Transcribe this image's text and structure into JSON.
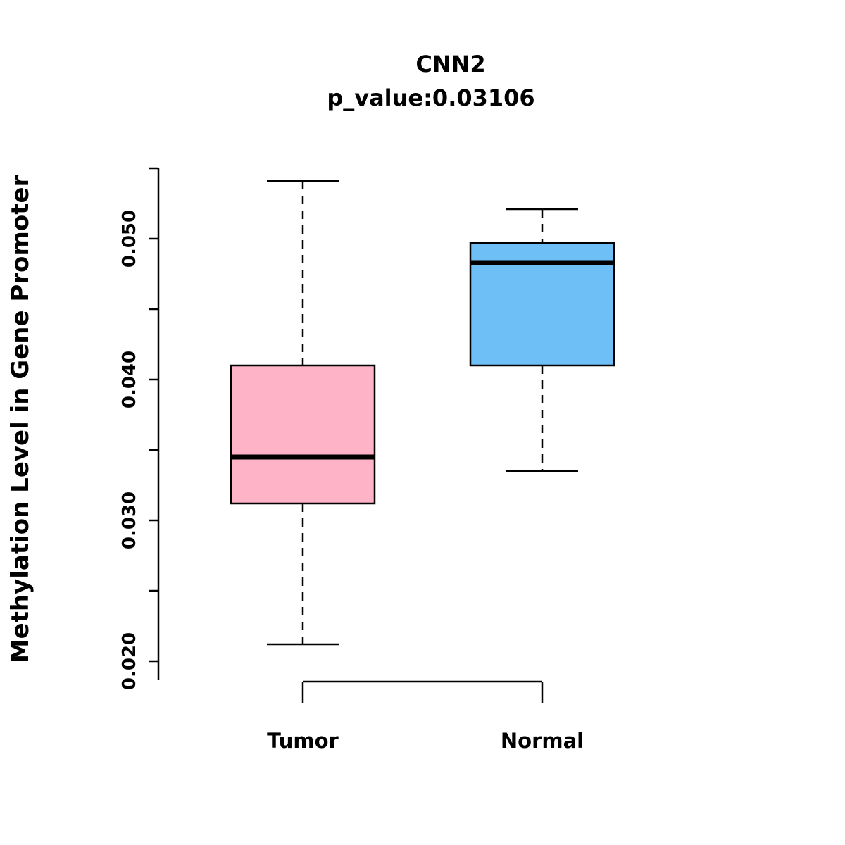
{
  "chart_data": {
    "type": "boxplot",
    "title": "CNN2",
    "subtitle": "p_value:0.03106",
    "ylabel": "Methylation Level in Gene Promoter",
    "xlabel": "",
    "categories": [
      "Tumor",
      "Normal"
    ],
    "ylim": [
      0.0187,
      0.055
    ],
    "grid": false,
    "legend": "none",
    "yticks": {
      "labeled": [
        0.02,
        0.03,
        0.04,
        0.05
      ],
      "labels": [
        "0.020",
        "0.030",
        "0.040",
        "0.050"
      ],
      "minor": [
        0.025,
        0.035,
        0.045,
        0.055
      ]
    },
    "boxes": [
      {
        "category": "Tumor",
        "color": "#FFB3C6",
        "whisker_low": 0.0212,
        "q1": 0.0312,
        "median": 0.0345,
        "q3": 0.041,
        "whisker_high": 0.0541
      },
      {
        "category": "Normal",
        "color": "#6FBFF7",
        "whisker_low": 0.0335,
        "q1": 0.041,
        "median": 0.0483,
        "q3": 0.0497,
        "whisker_high": 0.0521
      }
    ]
  }
}
